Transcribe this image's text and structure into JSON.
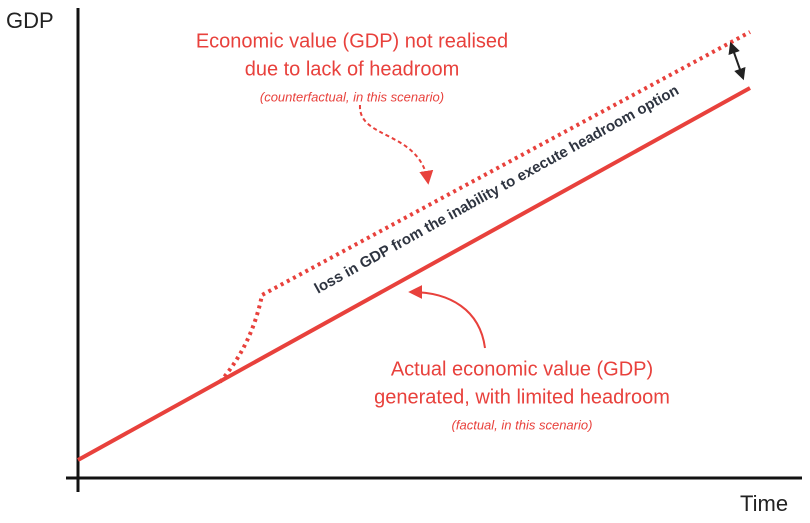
{
  "axes": {
    "y_label": "GDP",
    "x_label": "Time"
  },
  "counterfactual": {
    "lines": [
      "Economic value (GDP) not realised",
      "due to lack of headroom"
    ],
    "note": "(counterfactual, in this scenario)"
  },
  "factual": {
    "lines": [
      "Actual economic value (GDP)",
      "generated, with limited headroom"
    ],
    "note": "(factual, in this scenario)"
  },
  "gap_label": "loss in GDP from the inability to execute headroom option"
}
